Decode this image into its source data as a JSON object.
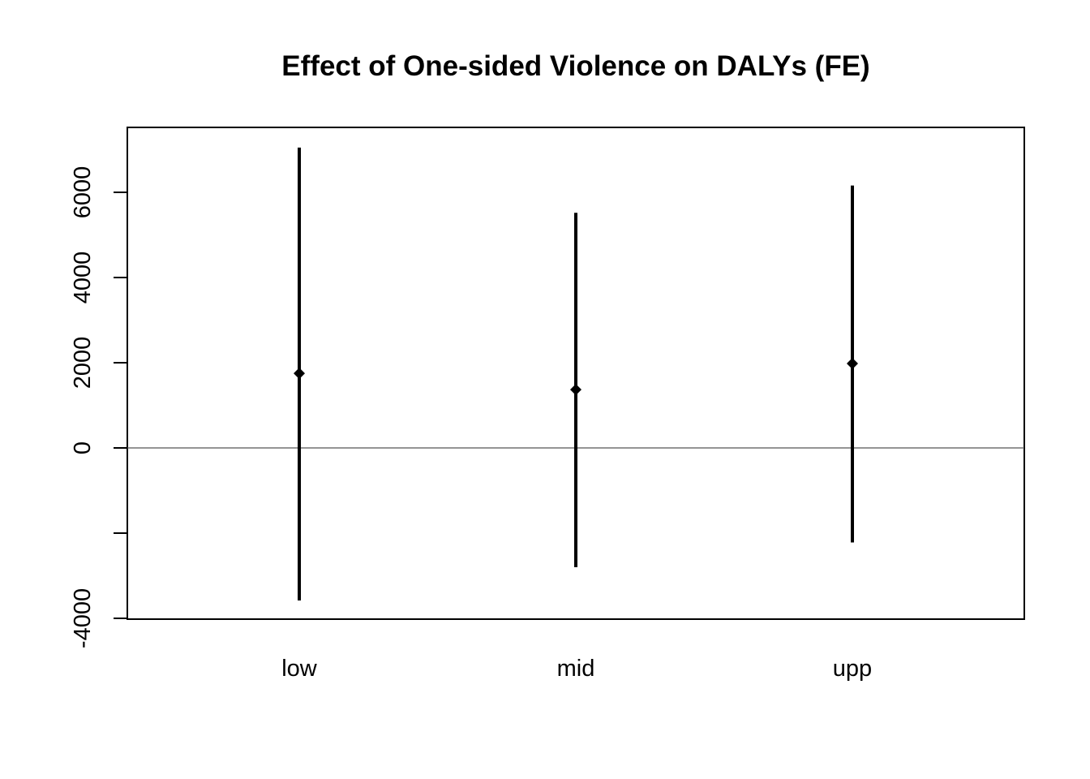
{
  "chart_data": {
    "type": "errorbar",
    "title": "Effect of One-sided Violence on DALYs (FE)",
    "xlabel": "",
    "ylabel": "",
    "categories": [
      "low",
      "mid",
      "upp"
    ],
    "estimates": [
      1750,
      1370,
      1980
    ],
    "lower": [
      -3580,
      -2800,
      -2220
    ],
    "upper": [
      7050,
      5520,
      6160
    ],
    "ylim": [
      -4000,
      7400
    ],
    "yticks": [
      -4000,
      -2000,
      0,
      2000,
      4000,
      6000
    ],
    "ytick_labels": [
      "-4000",
      "",
      "0",
      "2000",
      "4000",
      "6000"
    ],
    "reference_line": 0,
    "grid": false,
    "colors": {
      "bars": "#000000",
      "reference_line": "#555555",
      "frame": "#000000"
    }
  }
}
